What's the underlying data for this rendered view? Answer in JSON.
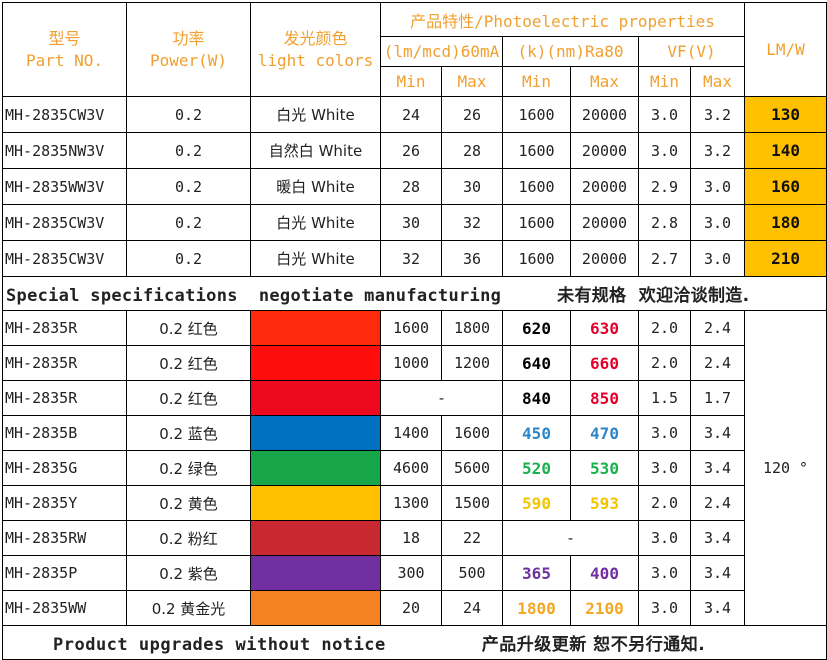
{
  "header": {
    "model_cn": "型号",
    "model_en": "Part NO.",
    "power_cn": "功率",
    "power_en": "Power(W)",
    "color_cn": "发光颜色",
    "color_en": "light colors",
    "properties_title": "产品特性/Photoelectric properties",
    "lm_group": "(lm/mcd)60mA",
    "k_group": "(k)(nm)Ra80",
    "vf_group": "VF(V)",
    "lmw": "LM/W",
    "min": "Min",
    "max": "Max"
  },
  "white_rows": [
    {
      "part": "MH-2835CW3V",
      "power": "0.2",
      "color": "白光 White",
      "lm_min": "24",
      "lm_max": "26",
      "k_min": "1600",
      "k_max": "20000",
      "vf_min": "3.0",
      "vf_max": "3.2",
      "lmw": "130"
    },
    {
      "part": "MH-2835NW3V",
      "power": "0.2",
      "color": "自然白 White",
      "lm_min": "26",
      "lm_max": "28",
      "k_min": "1600",
      "k_max": "20000",
      "vf_min": "3.0",
      "vf_max": "3.2",
      "lmw": "140"
    },
    {
      "part": "MH-2835WW3V",
      "power": "0.2",
      "color": "暖白 White",
      "lm_min": "28",
      "lm_max": "30",
      "k_min": "1600",
      "k_max": "20000",
      "vf_min": "2.9",
      "vf_max": "3.0",
      "lmw": "160"
    },
    {
      "part": "MH-2835CW3V",
      "power": "0.2",
      "color": "白光 White",
      "lm_min": "30",
      "lm_max": "32",
      "k_min": "1600",
      "k_max": "20000",
      "vf_min": "2.8",
      "vf_max": "3.0",
      "lmw": "180"
    },
    {
      "part": "MH-2835CW3V",
      "power": "0.2",
      "color": "白光 White",
      "lm_min": "32",
      "lm_max": "36",
      "k_min": "1600",
      "k_max": "20000",
      "vf_min": "2.7",
      "vf_max": "3.0",
      "lmw": "210"
    }
  ],
  "special_banner": {
    "en": "Special specifications  negotiate manufacturing",
    "cn": "未有规格  欢迎洽谈制造."
  },
  "color_rows": [
    {
      "part": "MH-2835R",
      "power_color": "0.2 红色",
      "swatch": "#ff2a0c",
      "lm_min": "1600",
      "lm_max": "1800",
      "wl_min": "620",
      "wl_max": "630",
      "wl_min_color": "#000000",
      "wl_max_color": "#e4002b",
      "vf_min": "2.0",
      "vf_max": "2.4"
    },
    {
      "part": "MH-2835R",
      "power_color": "0.2 红色",
      "swatch": "#ff0d0d",
      "lm_min": "1000",
      "lm_max": "1200",
      "wl_min": "640",
      "wl_max": "660",
      "wl_min_color": "#000000",
      "wl_max_color": "#e4002b",
      "vf_min": "2.0",
      "vf_max": "2.4"
    },
    {
      "part": "MH-2835R",
      "power_color": "0.2 红色",
      "swatch": "#ee0a1e",
      "lm_span": "-",
      "wl_min": "840",
      "wl_max": "850",
      "wl_min_color": "#000000",
      "wl_max_color": "#e4002b",
      "vf_min": "1.5",
      "vf_max": "1.7"
    },
    {
      "part": "MH-2835B",
      "power_color": "0.2 蓝色",
      "swatch": "#0070c0",
      "lm_min": "1400",
      "lm_max": "1600",
      "wl_min": "450",
      "wl_max": "470",
      "wl_min_color": "#2e86c8",
      "wl_max_color": "#2e86c8",
      "vf_min": "3.0",
      "vf_max": "3.4"
    },
    {
      "part": "MH-2835G",
      "power_color": "0.2 绿色",
      "swatch": "#18a64a",
      "lm_min": "4600",
      "lm_max": "5600",
      "wl_min": "520",
      "wl_max": "530",
      "wl_min_color": "#18b14c",
      "wl_max_color": "#18b14c",
      "vf_min": "3.0",
      "vf_max": "3.4"
    },
    {
      "part": "MH-2835Y",
      "power_color": "0.2 黄色",
      "swatch": "#ffc000",
      "lm_min": "1300",
      "lm_max": "1500",
      "wl_min": "590",
      "wl_max": "593",
      "wl_min_color": "#f5c400",
      "wl_max_color": "#f5c400",
      "vf_min": "2.0",
      "vf_max": "2.4"
    },
    {
      "part": "MH-2835RW",
      "power_color": "0.2 粉红",
      "swatch": "#c8282f",
      "lm_min": "18",
      "lm_max": "22",
      "wl_span": "-",
      "vf_min": "3.0",
      "vf_max": "3.4"
    },
    {
      "part": "MH-2835P",
      "power_color": "0.2 紫色",
      "swatch": "#7030a0",
      "lm_min": "300",
      "lm_max": "500",
      "wl_min": "365",
      "wl_max": "400",
      "wl_min_color": "#7030a0",
      "wl_max_color": "#7030a0",
      "vf_min": "3.0",
      "vf_max": "3.4"
    },
    {
      "part": "MH-2835WW",
      "power_color": "0.2 黄金光",
      "swatch": "#f58220",
      "lm_min": "20",
      "lm_max": "24",
      "wl_min": "1800",
      "wl_max": "2100",
      "wl_min_color": "#f5a623",
      "wl_max_color": "#f5a623",
      "vf_min": "3.0",
      "vf_max": "3.4"
    }
  ],
  "angle": "120 °",
  "footer": {
    "en": "Product upgrades without notice",
    "cn": "产品升级更新 恕不另行通知."
  }
}
